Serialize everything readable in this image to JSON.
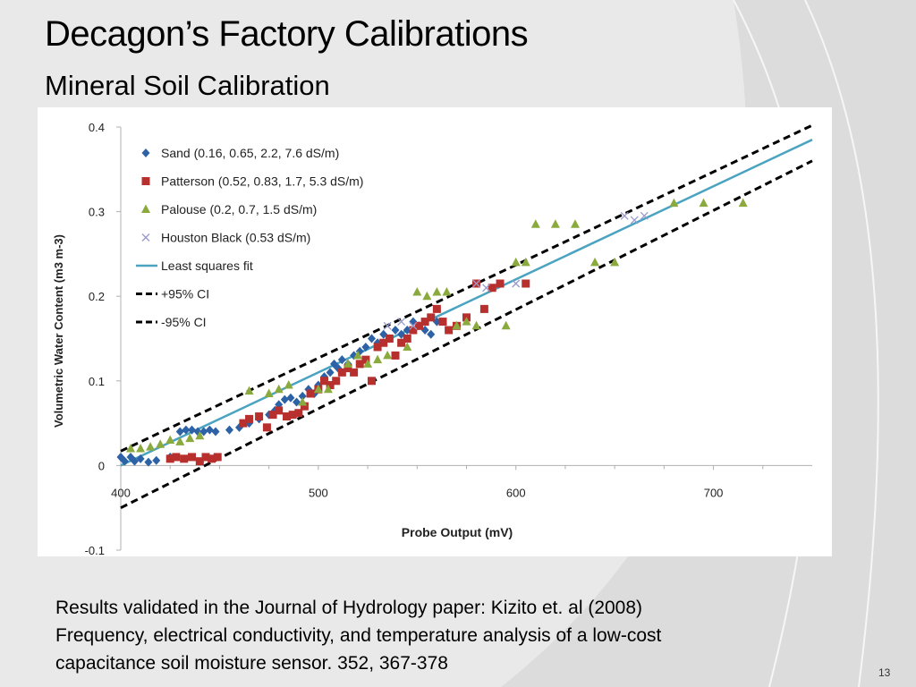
{
  "slide": {
    "title": "Decagon’s Factory Calibrations",
    "subtitle": "Mineral Soil Calibration",
    "caption_lines": [
      "Results validated in the Journal of Hydrology paper: Kizito et. al (2008)",
      "Frequency, electrical conductivity, and temperature analysis of a low-cost",
      "capacitance soil moisture sensor.  352, 367-378"
    ],
    "slide_number": "13"
  },
  "chart_data": {
    "type": "scatter",
    "title": "",
    "xlabel": "Probe Output (mV)",
    "ylabel": "Volumetric Water Content (m3 m-3)",
    "xlim": [
      400,
      750
    ],
    "ylim": [
      -0.1,
      0.4
    ],
    "x_ticks": [
      400,
      500,
      600,
      700
    ],
    "x_tick_labels": [
      "400",
      "500",
      "600",
      "700"
    ],
    "y_ticks": [
      -0.1,
      0,
      0.1,
      0.2,
      0.3,
      0.4
    ],
    "y_tick_labels": [
      "-0.1",
      "0",
      "0.1",
      "0.2",
      "0.3",
      "0.4"
    ],
    "grid": false,
    "legend_position": "top-left",
    "series": [
      {
        "name": "Sand (0.16, 0.65, 2.2, 7.6 dS/m)",
        "marker": "diamond",
        "color": "#2e62a6",
        "points": [
          [
            400,
            0.01
          ],
          [
            402,
            0.005
          ],
          [
            405,
            0.01
          ],
          [
            407,
            0.005
          ],
          [
            410,
            0.008
          ],
          [
            414,
            0.004
          ],
          [
            418,
            0.006
          ],
          [
            425,
            0.01
          ],
          [
            430,
            0.04
          ],
          [
            433,
            0.042
          ],
          [
            436,
            0.042
          ],
          [
            439,
            0.04
          ],
          [
            442,
            0.04
          ],
          [
            445,
            0.042
          ],
          [
            448,
            0.04
          ],
          [
            455,
            0.042
          ],
          [
            460,
            0.045
          ],
          [
            465,
            0.05
          ],
          [
            470,
            0.055
          ],
          [
            475,
            0.06
          ],
          [
            478,
            0.065
          ],
          [
            480,
            0.072
          ],
          [
            483,
            0.078
          ],
          [
            486,
            0.08
          ],
          [
            489,
            0.075
          ],
          [
            492,
            0.082
          ],
          [
            495,
            0.09
          ],
          [
            498,
            0.085
          ],
          [
            500,
            0.095
          ],
          [
            503,
            0.105
          ],
          [
            506,
            0.11
          ],
          [
            508,
            0.12
          ],
          [
            510,
            0.115
          ],
          [
            512,
            0.125
          ],
          [
            515,
            0.12
          ],
          [
            518,
            0.13
          ],
          [
            521,
            0.135
          ],
          [
            524,
            0.14
          ],
          [
            527,
            0.15
          ],
          [
            530,
            0.145
          ],
          [
            533,
            0.155
          ],
          [
            536,
            0.15
          ],
          [
            539,
            0.16
          ],
          [
            542,
            0.155
          ],
          [
            545,
            0.16
          ],
          [
            548,
            0.17
          ],
          [
            551,
            0.165
          ],
          [
            554,
            0.16
          ],
          [
            557,
            0.155
          ],
          [
            560,
            0.17
          ]
        ]
      },
      {
        "name": "Patterson (0.52, 0.83, 1.7, 5.3 dS/m)",
        "marker": "square",
        "color": "#b8302e",
        "points": [
          [
            425,
            0.008
          ],
          [
            428,
            0.01
          ],
          [
            432,
            0.008
          ],
          [
            436,
            0.01
          ],
          [
            440,
            0.005
          ],
          [
            443,
            0.01
          ],
          [
            446,
            0.008
          ],
          [
            449,
            0.01
          ],
          [
            462,
            0.05
          ],
          [
            465,
            0.055
          ],
          [
            470,
            0.058
          ],
          [
            474,
            0.045
          ],
          [
            477,
            0.06
          ],
          [
            480,
            0.065
          ],
          [
            484,
            0.058
          ],
          [
            487,
            0.06
          ],
          [
            490,
            0.062
          ],
          [
            493,
            0.07
          ],
          [
            496,
            0.085
          ],
          [
            500,
            0.09
          ],
          [
            503,
            0.1
          ],
          [
            506,
            0.095
          ],
          [
            509,
            0.1
          ],
          [
            512,
            0.11
          ],
          [
            515,
            0.115
          ],
          [
            518,
            0.11
          ],
          [
            521,
            0.12
          ],
          [
            524,
            0.125
          ],
          [
            527,
            0.1
          ],
          [
            530,
            0.14
          ],
          [
            533,
            0.145
          ],
          [
            536,
            0.15
          ],
          [
            539,
            0.13
          ],
          [
            542,
            0.145
          ],
          [
            545,
            0.15
          ],
          [
            548,
            0.16
          ],
          [
            551,
            0.165
          ],
          [
            554,
            0.17
          ],
          [
            557,
            0.175
          ],
          [
            560,
            0.185
          ],
          [
            563,
            0.17
          ],
          [
            566,
            0.16
          ],
          [
            570,
            0.165
          ],
          [
            575,
            0.175
          ],
          [
            580,
            0.215
          ],
          [
            584,
            0.185
          ],
          [
            588,
            0.21
          ],
          [
            592,
            0.215
          ],
          [
            605,
            0.215
          ]
        ]
      },
      {
        "name": "Palouse (0.2, 0.7, 1.5 dS/m)",
        "marker": "triangle",
        "color": "#8aaa3e",
        "points": [
          [
            405,
            0.02
          ],
          [
            410,
            0.02
          ],
          [
            415,
            0.022
          ],
          [
            420,
            0.025
          ],
          [
            425,
            0.03
          ],
          [
            430,
            0.028
          ],
          [
            435,
            0.032
          ],
          [
            440,
            0.035
          ],
          [
            465,
            0.088
          ],
          [
            475,
            0.085
          ],
          [
            480,
            0.09
          ],
          [
            485,
            0.095
          ],
          [
            492,
            0.075
          ],
          [
            500,
            0.09
          ],
          [
            505,
            0.09
          ],
          [
            515,
            0.12
          ],
          [
            520,
            0.13
          ],
          [
            525,
            0.12
          ],
          [
            530,
            0.125
          ],
          [
            535,
            0.13
          ],
          [
            545,
            0.14
          ],
          [
            550,
            0.205
          ],
          [
            555,
            0.2
          ],
          [
            560,
            0.205
          ],
          [
            565,
            0.205
          ],
          [
            570,
            0.165
          ],
          [
            575,
            0.17
          ],
          [
            580,
            0.165
          ],
          [
            595,
            0.165
          ],
          [
            600,
            0.24
          ],
          [
            605,
            0.24
          ],
          [
            610,
            0.285
          ],
          [
            620,
            0.285
          ],
          [
            630,
            0.285
          ],
          [
            640,
            0.24
          ],
          [
            650,
            0.24
          ],
          [
            680,
            0.31
          ],
          [
            695,
            0.31
          ],
          [
            715,
            0.31
          ]
        ]
      },
      {
        "name": "Houston Black (0.53 dS/m)",
        "marker": "x",
        "color": "#9999cc",
        "points": [
          [
            535,
            0.165
          ],
          [
            542,
            0.17
          ],
          [
            548,
            0.165
          ],
          [
            580,
            0.215
          ],
          [
            585,
            0.21
          ],
          [
            600,
            0.215
          ],
          [
            655,
            0.295
          ],
          [
            660,
            0.29
          ],
          [
            665,
            0.295
          ]
        ]
      }
    ],
    "lines": [
      {
        "name": "Least squares fit",
        "style": "solid",
        "color": "#4aa3c0",
        "points": [
          [
            400,
            0.0
          ],
          [
            750,
            0.385
          ]
        ]
      },
      {
        "name": "+95% CI",
        "style": "dashed",
        "color": "#000000",
        "points": [
          [
            400,
            0.017
          ],
          [
            750,
            0.402
          ]
        ]
      },
      {
        "name": "-95% CI",
        "style": "dashed",
        "color": "#000000",
        "points": [
          [
            400,
            -0.05
          ],
          [
            750,
            0.36
          ]
        ]
      }
    ]
  }
}
